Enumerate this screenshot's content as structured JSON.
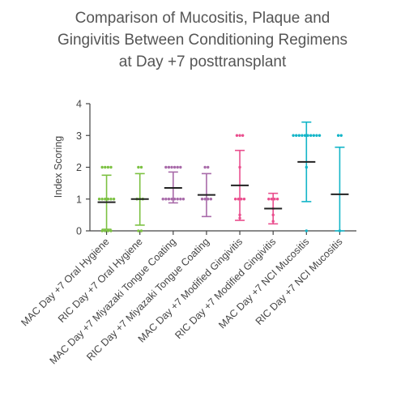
{
  "chart_data": {
    "type": "scatter",
    "title_lines": [
      "Comparison of Mucositis, Plaque and",
      "Gingivitis Between Conditioning Regimens",
      "at Day +7 posttransplant"
    ],
    "xlabel": "",
    "ylabel": "Index Scoring",
    "ylim": [
      0,
      4
    ],
    "yticks": [
      "0",
      "1",
      "2",
      "3",
      "4"
    ],
    "grid": false,
    "legend": "none",
    "categories": [
      "MAC Day +7 Oral Hygiene",
      "RIC Day +7 Oral Hygiene",
      "MAC Day +7 Miyazaki Tongue Coating",
      "RIC Day +7 Miyazaki Tongue Coating",
      "MAC Day +7 Modified Gingivitis",
      "RIC Day +7 Modified Gingivitis",
      "MAC Day +7 NCI Mucositis",
      "RIC Day +7 NCI Mucositis"
    ],
    "groups": [
      {
        "color": "#7cc142",
        "mean": 0.9,
        "sd_low": 0.05,
        "sd_high": 1.75,
        "points": [
          0,
          0,
          0,
          0,
          1,
          1,
          1,
          1,
          1,
          1,
          2,
          2,
          2,
          2
        ]
      },
      {
        "color": "#7cc142",
        "mean": 1.0,
        "sd_low": 0.18,
        "sd_high": 1.8,
        "points": [
          0,
          0,
          1,
          1,
          1,
          2,
          2
        ]
      },
      {
        "color": "#a86aa9",
        "mean": 1.35,
        "sd_low": 0.88,
        "sd_high": 1.85,
        "points": [
          1,
          1,
          1,
          1,
          1,
          1,
          1,
          1,
          2,
          2,
          2,
          2,
          2,
          2
        ]
      },
      {
        "color": "#a86aa9",
        "mean": 1.13,
        "sd_low": 0.45,
        "sd_high": 1.8,
        "points": [
          1,
          1,
          1,
          1,
          2,
          2
        ]
      },
      {
        "color": "#ea4f8e",
        "mean": 1.43,
        "sd_low": 0.33,
        "sd_high": 2.53,
        "points": [
          0.4,
          0.5,
          1,
          1,
          1,
          1,
          2,
          3,
          3,
          3
        ]
      },
      {
        "color": "#ea4f8e",
        "mean": 0.7,
        "sd_low": 0.22,
        "sd_high": 1.18,
        "points": [
          0.3,
          0.5,
          0.7,
          1,
          1,
          1,
          1
        ]
      },
      {
        "color": "#13b5c8",
        "mean": 2.17,
        "sd_low": 0.92,
        "sd_high": 3.42,
        "points": [
          0,
          2,
          3,
          3,
          3,
          3,
          3,
          3,
          3,
          3,
          3,
          3
        ]
      },
      {
        "color": "#13b5c8",
        "mean": 1.15,
        "sd_low": 0.0,
        "sd_high": 2.63,
        "points": [
          0,
          3,
          3
        ]
      }
    ]
  }
}
